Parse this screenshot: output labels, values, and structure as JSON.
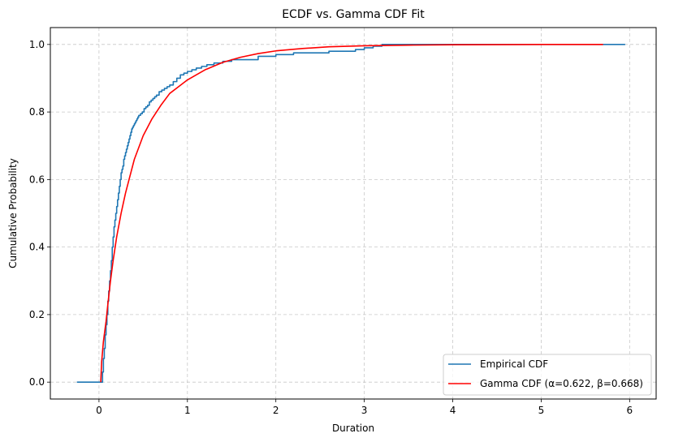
{
  "chart_data": {
    "type": "line",
    "title": "ECDF vs. Gamma CDF Fit",
    "xlabel": "Duration",
    "ylabel": "Cumulative Probability",
    "xlim": [
      -0.55,
      6.3
    ],
    "ylim": [
      -0.05,
      1.05
    ],
    "xticks": [
      0,
      1,
      2,
      3,
      4,
      5,
      6
    ],
    "yticks": [
      0.0,
      0.2,
      0.4,
      0.6,
      0.8,
      1.0
    ],
    "xtick_labels": [
      "0",
      "1",
      "2",
      "3",
      "4",
      "5",
      "6"
    ],
    "ytick_labels": [
      "0.0",
      "0.2",
      "0.4",
      "0.6",
      "0.8",
      "1.0"
    ],
    "grid": true,
    "legend_position": "lower-right",
    "series": [
      {
        "name": "Empirical CDF",
        "style": "step",
        "color": "#1f77b4",
        "x": [
          -0.25,
          0.03,
          0.04,
          0.05,
          0.06,
          0.07,
          0.08,
          0.09,
          0.1,
          0.11,
          0.12,
          0.13,
          0.14,
          0.15,
          0.16,
          0.17,
          0.18,
          0.19,
          0.2,
          0.21,
          0.22,
          0.23,
          0.24,
          0.25,
          0.26,
          0.27,
          0.28,
          0.29,
          0.3,
          0.31,
          0.32,
          0.33,
          0.34,
          0.35,
          0.36,
          0.37,
          0.38,
          0.39,
          0.4,
          0.41,
          0.42,
          0.43,
          0.44,
          0.45,
          0.47,
          0.49,
          0.51,
          0.53,
          0.55,
          0.57,
          0.59,
          0.61,
          0.63,
          0.65,
          0.68,
          0.71,
          0.74,
          0.77,
          0.8,
          0.84,
          0.88,
          0.92,
          0.96,
          1.0,
          1.05,
          1.1,
          1.16,
          1.22,
          1.3,
          1.4,
          1.5,
          1.6,
          1.8,
          2.0,
          2.2,
          2.3,
          2.6,
          2.9,
          3.0,
          3.1,
          3.2,
          5.95
        ],
        "y": [
          0.0,
          0.0,
          0.03,
          0.07,
          0.1,
          0.14,
          0.17,
          0.2,
          0.24,
          0.27,
          0.3,
          0.33,
          0.36,
          0.4,
          0.43,
          0.46,
          0.48,
          0.5,
          0.52,
          0.54,
          0.56,
          0.58,
          0.6,
          0.62,
          0.63,
          0.64,
          0.66,
          0.67,
          0.68,
          0.69,
          0.7,
          0.71,
          0.72,
          0.73,
          0.74,
          0.75,
          0.755,
          0.76,
          0.765,
          0.77,
          0.775,
          0.78,
          0.785,
          0.79,
          0.795,
          0.8,
          0.81,
          0.815,
          0.82,
          0.83,
          0.835,
          0.84,
          0.845,
          0.85,
          0.86,
          0.865,
          0.87,
          0.875,
          0.88,
          0.89,
          0.9,
          0.91,
          0.915,
          0.92,
          0.925,
          0.93,
          0.935,
          0.94,
          0.945,
          0.95,
          0.955,
          0.955,
          0.965,
          0.97,
          0.975,
          0.975,
          0.98,
          0.985,
          0.99,
          0.995,
          1.0,
          1.0
        ]
      },
      {
        "name": "Gamma CDF (α=0.622, β=0.668)",
        "style": "line",
        "color": "#ff0000",
        "x": [
          0.02,
          0.03,
          0.05,
          0.08,
          0.1,
          0.13,
          0.16,
          0.2,
          0.25,
          0.3,
          0.35,
          0.4,
          0.5,
          0.6,
          0.7,
          0.8,
          0.9,
          1.0,
          1.2,
          1.4,
          1.6,
          1.8,
          2.0,
          2.3,
          2.6,
          3.0,
          3.5,
          4.0,
          5.0,
          5.7
        ],
        "y": [
          0.0,
          0.06,
          0.12,
          0.18,
          0.23,
          0.3,
          0.36,
          0.43,
          0.5,
          0.56,
          0.61,
          0.66,
          0.73,
          0.78,
          0.82,
          0.855,
          0.875,
          0.895,
          0.925,
          0.947,
          0.962,
          0.973,
          0.981,
          0.988,
          0.993,
          0.996,
          0.998,
          0.999,
          1.0,
          1.0
        ]
      }
    ]
  }
}
